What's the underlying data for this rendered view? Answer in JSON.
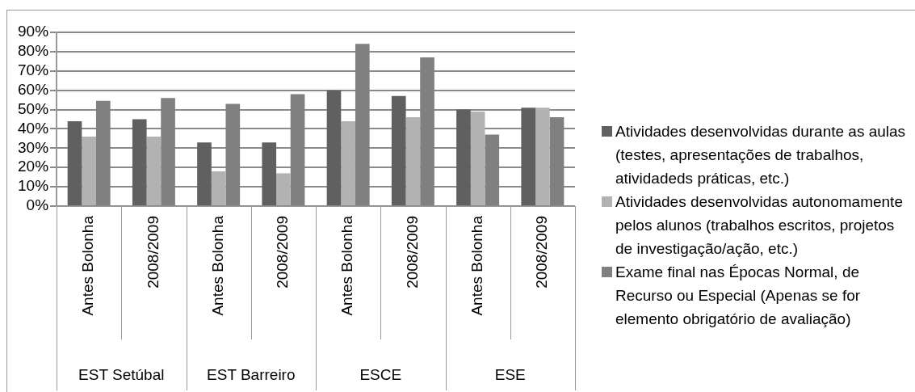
{
  "chart_data": {
    "type": "bar",
    "categories": [
      "Antes Bolonha",
      "2008/2009",
      "Antes Bolonha",
      "2008/2009",
      "Antes Bolonha",
      "2008/2009",
      "Antes Bolonha",
      "2008/2009"
    ],
    "annotations": [
      "EST Setúbal",
      "EST Barreiro",
      "ESCE",
      "ESE"
    ],
    "series": [
      {
        "name": "Atividades desenvolvidas durante as aulas (testes, apresentações de trabalhos, atividadeds práticas, etc.)",
        "color": "#606060",
        "values": [
          44,
          45,
          33,
          33,
          60,
          57,
          50,
          51
        ]
      },
      {
        "name": "Atividades desenvolvidas autonomamente pelos alunos (trabalhos escritos, projetos de investigação/ação, etc.)",
        "color": "#b2b2b2",
        "values": [
          36,
          36,
          18,
          17,
          44,
          46,
          49,
          51
        ]
      },
      {
        "name": "Exame final nas Épocas Normal, de Recurso ou Especial (Apenas se for elemento obrigatório de avaliação)",
        "color": "#808080",
        "values": [
          54.5,
          56,
          53,
          58,
          84,
          77,
          37,
          46
        ]
      }
    ],
    "ylim": [
      0,
      90
    ],
    "yticks": [
      {
        "value": 0,
        "label": "0%"
      },
      {
        "value": 10,
        "label": "10%"
      },
      {
        "value": 20,
        "label": "20%"
      },
      {
        "value": 30,
        "label": "30%"
      },
      {
        "value": 40,
        "label": "40%"
      },
      {
        "value": 50,
        "label": "50%"
      },
      {
        "value": 60,
        "label": "60%"
      },
      {
        "value": 70,
        "label": "70%"
      },
      {
        "value": 80,
        "label": "80%"
      },
      {
        "value": 90,
        "label": "90%"
      }
    ],
    "grid": "y",
    "legend": "right"
  }
}
